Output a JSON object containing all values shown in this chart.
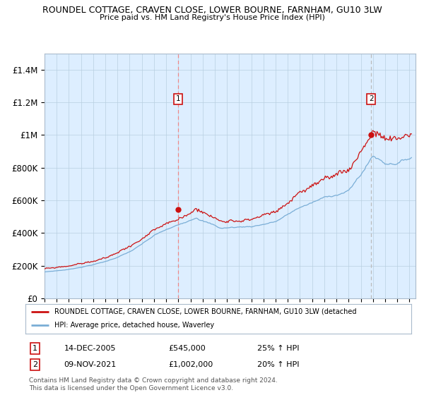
{
  "title_line1": "ROUNDEL COTTAGE, CRAVEN CLOSE, LOWER BOURNE, FARNHAM, GU10 3LW",
  "title_line2": "Price paid vs. HM Land Registry's House Price Index (HPI)",
  "ylabel_ticks": [
    "£0",
    "£200K",
    "£400K",
    "£600K",
    "£800K",
    "£1M",
    "£1.2M",
    "£1.4M"
  ],
  "ylim": [
    0,
    1500000
  ],
  "ytick_vals": [
    0,
    200000,
    400000,
    600000,
    800000,
    1000000,
    1200000,
    1400000
  ],
  "xstart_year": 1995,
  "xend_year": 2025,
  "purchase1_year": 2005.96,
  "purchase1_price": 545000,
  "purchase1_label": "14-DEC-2005",
  "purchase1_pct": "25%",
  "purchase2_year": 2021.86,
  "purchase2_price": 1002000,
  "purchase2_label": "09-NOV-2021",
  "purchase2_pct": "20%",
  "hpi_line_color": "#7aaed6",
  "property_line_color": "#cc1111",
  "bg_fill_color": "#ddeeff",
  "grid_color": "#b8cfe0",
  "vline1_color": "#ee8888",
  "vline2_color": "#bbbbbb",
  "legend_label1": "ROUNDEL COTTAGE, CRAVEN CLOSE, LOWER BOURNE, FARNHAM, GU10 3LW (detached",
  "legend_label2": "HPI: Average price, detached house, Waverley",
  "footer_text": "Contains HM Land Registry data © Crown copyright and database right 2024.\nThis data is licensed under the Open Government Licence v3.0.",
  "table_row1": [
    "1",
    "14-DEC-2005",
    "£545,000",
    "25% ↑ HPI"
  ],
  "table_row2": [
    "2",
    "09-NOV-2021",
    "£1,002,000",
    "20% ↑ HPI"
  ]
}
